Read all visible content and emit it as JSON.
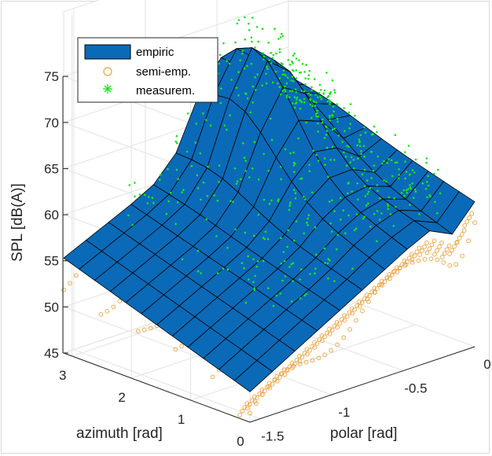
{
  "chart_data": {
    "type": "surface3d",
    "zlabel": "SPL [dB(A)]",
    "xlabel": "polar [rad]",
    "ylabel": "azimuth [rad]",
    "zlim": [
      45,
      75
    ],
    "z_ticks": [
      "45",
      "50",
      "55",
      "60",
      "65",
      "70",
      "75"
    ],
    "azimuth_ticks": [
      "0",
      "1",
      "2",
      "3"
    ],
    "polar_ticks": [
      "-1.5",
      "-1",
      "-0.5",
      "0"
    ],
    "grid": true,
    "legend_position": "top-left",
    "legend": [
      {
        "label": "empiric",
        "marker": "surface",
        "color": "#0a6ab8"
      },
      {
        "label": "semi-emp.",
        "marker": "circle",
        "color": "#eda23e"
      },
      {
        "label": "measurem.",
        "marker": "asterisk",
        "color": "#19e619"
      }
    ],
    "empiric_surface_corners": {
      "polar_-1.57_azimuth_3.14": 55.3,
      "polar_-1.57_azimuth_0": 48.3,
      "polar_0_azimuth_0": 62.2,
      "polar_0_azimuth_3.14": 66.5
    },
    "peak": {
      "polar": -0.4,
      "azimuth": 2.5,
      "spl": 73.0
    }
  },
  "colors": {
    "surface": "#0a6ab8",
    "semi_emp": "#eda23e",
    "measurement": "#19e619",
    "grid": "#e2e2e2",
    "axis": "#262626"
  }
}
